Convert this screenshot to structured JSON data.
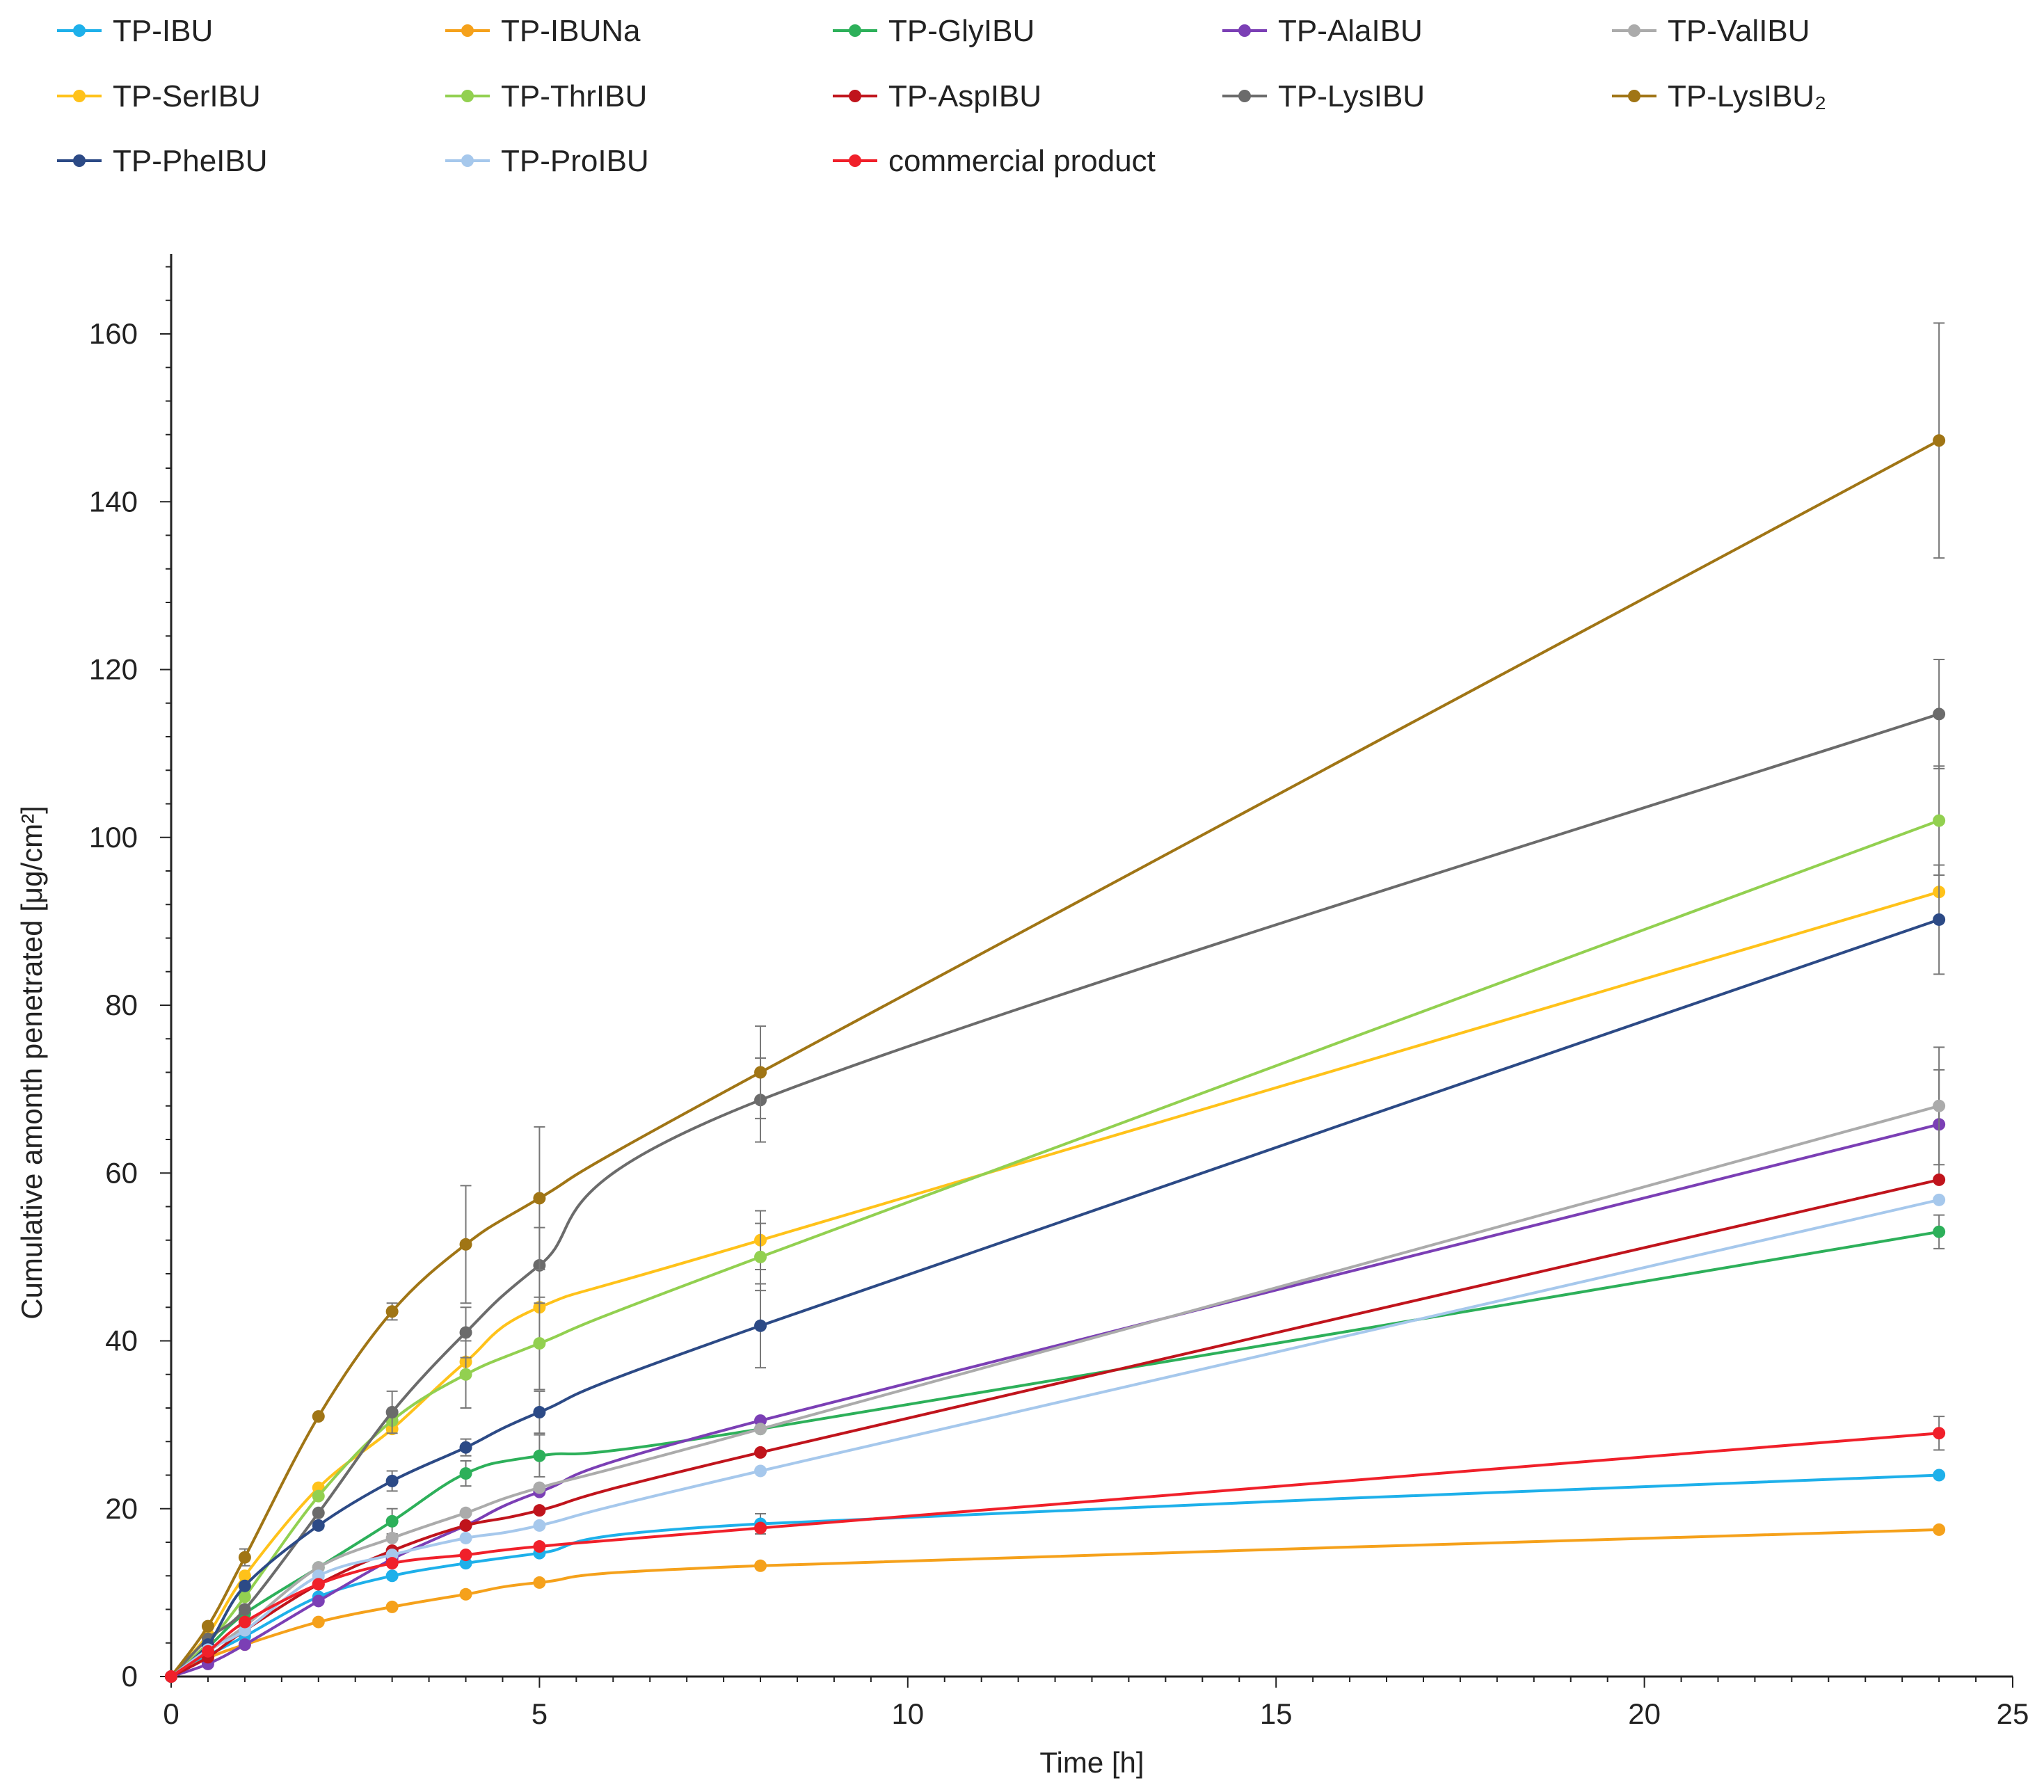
{
  "chart_data": {
    "type": "line",
    "xlabel": "Time [h]",
    "ylabel": "Cumulative amonth penetrated [μg/cm²]",
    "xlim": [
      0,
      25
    ],
    "ylim": [
      0,
      170
    ],
    "x_ticks": [
      0,
      5,
      10,
      15,
      20,
      25
    ],
    "y_ticks": [
      0,
      20,
      40,
      60,
      80,
      100,
      120,
      140,
      160
    ],
    "grid": false,
    "legend_position": "top",
    "x": [
      0,
      0.5,
      1,
      2,
      3,
      4,
      5,
      8,
      24
    ],
    "series": [
      {
        "name": "TP-IBU",
        "color": "#1EB0EA",
        "values": [
          0,
          2.5,
          4.8,
          9.5,
          12.0,
          13.5,
          14.7,
          18.2,
          24.0
        ],
        "errors": [
          0,
          0,
          0,
          0,
          0,
          0,
          0,
          1.2,
          0
        ]
      },
      {
        "name": "TP-IBUNa",
        "color": "#F5A11B",
        "values": [
          0,
          2.2,
          3.8,
          6.5,
          8.3,
          9.8,
          11.2,
          13.2,
          17.5
        ],
        "errors": [
          0,
          0,
          0,
          0,
          0,
          0,
          0,
          0,
          0
        ]
      },
      {
        "name": "TP-GlyIBU",
        "color": "#2DB05A",
        "values": [
          0,
          3.5,
          7.5,
          13.0,
          18.5,
          24.2,
          26.3,
          29.5,
          53.0
        ],
        "errors": [
          0,
          0,
          0,
          0,
          1.5,
          1.5,
          2.5,
          0,
          2.0
        ]
      },
      {
        "name": "TP-AlaIBU",
        "color": "#7B3FB5",
        "values": [
          0,
          1.5,
          3.8,
          9.0,
          14.0,
          18.0,
          22.0,
          30.5,
          65.8
        ],
        "errors": [
          0,
          0,
          0,
          0,
          0,
          0,
          0,
          0,
          6.5
        ]
      },
      {
        "name": "TP-ValIBU",
        "color": "#ABABAB",
        "values": [
          0,
          3.0,
          6.0,
          13.0,
          16.5,
          19.5,
          22.5,
          29.5,
          68.0
        ],
        "errors": [
          0,
          0,
          0,
          0,
          0,
          0,
          0,
          0,
          7.0
        ]
      },
      {
        "name": "TP-SerIBU",
        "color": "#FFC21A",
        "values": [
          0,
          5.0,
          12.0,
          22.5,
          29.5,
          37.5,
          44.0,
          52.0,
          93.5
        ],
        "errors": [
          0,
          0,
          0,
          0,
          0,
          0,
          0,
          3.5,
          0
        ]
      },
      {
        "name": "TP-ThrIBU",
        "color": "#92D050",
        "values": [
          0,
          4.0,
          9.5,
          21.5,
          30.5,
          36.0,
          39.7,
          50.0,
          102.0
        ],
        "errors": [
          0,
          0,
          0,
          0,
          0,
          4.0,
          5.5,
          4.0,
          6.5
        ]
      },
      {
        "name": "TP-AspIBU",
        "color": "#C0141C",
        "values": [
          0,
          2.3,
          5.5,
          11.0,
          15.0,
          18.0,
          19.8,
          26.7,
          59.2
        ],
        "errors": [
          0,
          0,
          0,
          0,
          0,
          0,
          0,
          0,
          0
        ]
      },
      {
        "name": "TP-LysIBU",
        "color": "#6B6B6B",
        "values": [
          0,
          4.5,
          8.0,
          19.5,
          31.5,
          41.0,
          49.0,
          68.7,
          114.7
        ],
        "errors": [
          0,
          0,
          0,
          0,
          2.5,
          3.0,
          4.5,
          5.0,
          6.5
        ]
      },
      {
        "name": "TP-LysIBU₂",
        "color": "#A07515",
        "values": [
          0,
          6.0,
          14.2,
          31.0,
          43.5,
          51.5,
          57.0,
          72.0,
          147.3
        ],
        "errors": [
          0,
          0,
          1.0,
          0,
          1.0,
          7.0,
          8.5,
          5.5,
          14.0
        ]
      },
      {
        "name": "TP-PheIBU",
        "color": "#2C4A86",
        "values": [
          0,
          3.8,
          10.8,
          18.0,
          23.3,
          27.3,
          31.5,
          41.8,
          90.2
        ],
        "errors": [
          0,
          0,
          0,
          0,
          1.2,
          1.0,
          2.5,
          5.0,
          6.5
        ]
      },
      {
        "name": "TP-ProIBU",
        "color": "#A6C8EC",
        "values": [
          0,
          3.2,
          5.5,
          12.0,
          14.5,
          16.5,
          18.0,
          24.5,
          56.8
        ],
        "errors": [
          0,
          0,
          0,
          0,
          0,
          0,
          0,
          0,
          0
        ]
      },
      {
        "name": "commercial product",
        "color": "#F0202A",
        "values": [
          0,
          3.0,
          6.5,
          11.0,
          13.5,
          14.5,
          15.5,
          17.7,
          29.0
        ],
        "errors": [
          0,
          0,
          0,
          0,
          0,
          0,
          0,
          0,
          2.0
        ]
      }
    ]
  }
}
